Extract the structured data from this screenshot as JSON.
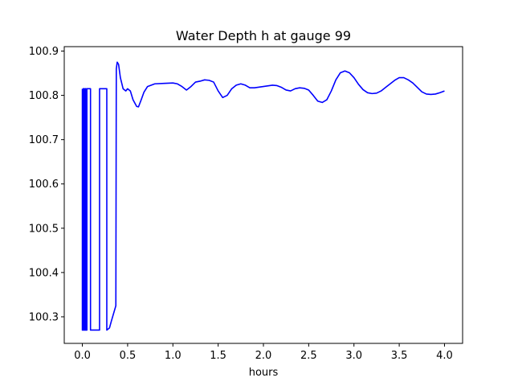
{
  "chart_data": {
    "type": "line",
    "title": "Water Depth h at gauge 99",
    "xlabel": "hours",
    "ylabel": "",
    "xlim": [
      -0.2,
      4.2
    ],
    "ylim": [
      100.24,
      100.91
    ],
    "xticks": [
      0.0,
      0.5,
      1.0,
      1.5,
      2.0,
      2.5,
      3.0,
      3.5,
      4.0
    ],
    "xtick_labels": [
      "0.0",
      "0.5",
      "1.0",
      "1.5",
      "2.0",
      "2.5",
      "3.0",
      "3.5",
      "4.0"
    ],
    "yticks": [
      100.3,
      100.4,
      100.5,
      100.6,
      100.7,
      100.8,
      100.9
    ],
    "ytick_labels": [
      "100.3",
      "100.4",
      "100.5",
      "100.6",
      "100.7",
      "100.8",
      "100.9"
    ],
    "grid": false,
    "series": [
      {
        "name": "",
        "color": "#0000ff",
        "x": [
          0.0,
          0.0,
          0.01,
          0.01,
          0.02,
          0.02,
          0.03,
          0.03,
          0.04,
          0.04,
          0.05,
          0.05,
          0.06,
          0.06,
          0.09,
          0.09,
          0.1,
          0.1,
          0.19,
          0.19,
          0.2,
          0.2,
          0.27,
          0.27,
          0.3,
          0.32,
          0.37,
          0.375,
          0.385,
          0.4,
          0.42,
          0.45,
          0.48,
          0.5,
          0.53,
          0.56,
          0.6,
          0.62,
          0.65,
          0.68,
          0.72,
          0.8,
          0.9,
          1.0,
          1.05,
          1.1,
          1.15,
          1.2,
          1.25,
          1.3,
          1.35,
          1.4,
          1.45,
          1.5,
          1.55,
          1.6,
          1.65,
          1.7,
          1.75,
          1.8,
          1.85,
          1.9,
          2.0,
          2.1,
          2.15,
          2.2,
          2.25,
          2.3,
          2.35,
          2.4,
          2.45,
          2.5,
          2.55,
          2.6,
          2.65,
          2.7,
          2.75,
          2.8,
          2.85,
          2.9,
          2.95,
          3.0,
          3.05,
          3.1,
          3.15,
          3.2,
          3.25,
          3.3,
          3.35,
          3.4,
          3.45,
          3.5,
          3.55,
          3.6,
          3.65,
          3.7,
          3.75,
          3.8,
          3.85,
          3.9,
          3.95,
          4.0
        ],
        "values": [
          100.815,
          100.27,
          100.27,
          100.815,
          100.815,
          100.27,
          100.27,
          100.815,
          100.815,
          100.27,
          100.27,
          100.815,
          100.815,
          100.815,
          100.815,
          100.27,
          100.27,
          100.27,
          100.27,
          100.815,
          100.815,
          100.815,
          100.815,
          100.27,
          100.275,
          100.29,
          100.325,
          100.86,
          100.875,
          100.87,
          100.84,
          100.815,
          100.81,
          100.815,
          100.81,
          100.79,
          100.775,
          100.774,
          100.79,
          100.807,
          100.82,
          100.826,
          100.827,
          100.828,
          100.826,
          100.82,
          100.812,
          100.82,
          100.83,
          100.832,
          100.835,
          100.834,
          100.83,
          100.81,
          100.795,
          100.8,
          100.815,
          100.823,
          100.826,
          100.823,
          100.817,
          100.817,
          100.82,
          100.823,
          100.822,
          100.818,
          100.812,
          100.81,
          100.815,
          100.817,
          100.816,
          100.812,
          100.8,
          100.787,
          100.784,
          100.79,
          100.81,
          100.835,
          100.851,
          100.855,
          100.851,
          100.84,
          100.825,
          100.813,
          100.806,
          100.804,
          100.805,
          100.81,
          100.818,
          100.826,
          100.834,
          100.84,
          100.84,
          100.835,
          100.828,
          100.818,
          100.808,
          100.803,
          100.802,
          100.803,
          100.806,
          100.81
        ]
      }
    ]
  }
}
